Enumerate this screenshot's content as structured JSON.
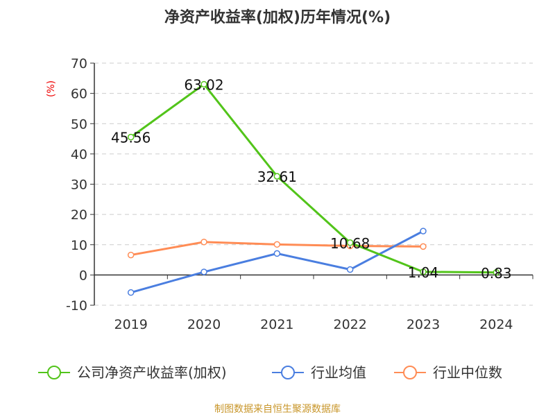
{
  "chart_data": {
    "type": "line",
    "title": "净资产收益率(加权)历年情况(%)",
    "ylabel": "(%)",
    "xlabel": "",
    "categories": [
      "2019",
      "2020",
      "2021",
      "2022",
      "2023",
      "2024"
    ],
    "ylim": [
      -10,
      70
    ],
    "yticks": [
      -10,
      0,
      10,
      20,
      30,
      40,
      50,
      60,
      70
    ],
    "grid": true,
    "legend_position": "bottom",
    "series": [
      {
        "name": "公司净资产收益率(加权)",
        "color": "#52c41a",
        "values": [
          45.56,
          63.02,
          32.61,
          10.68,
          1.04,
          0.83
        ],
        "labels": [
          "45.56",
          "63.02",
          "32.61",
          "10.68",
          "1.04",
          "0.83"
        ]
      },
      {
        "name": "行业均值",
        "color": "#4a7ee0",
        "values": [
          -5.8,
          1.0,
          7.1,
          1.8,
          14.5,
          null
        ]
      },
      {
        "name": "行业中位数",
        "color": "#ff8c55",
        "values": [
          6.6,
          10.9,
          10.1,
          9.6,
          9.4,
          null
        ]
      }
    ]
  },
  "footer": "制图数据来自恒生聚源数据库"
}
